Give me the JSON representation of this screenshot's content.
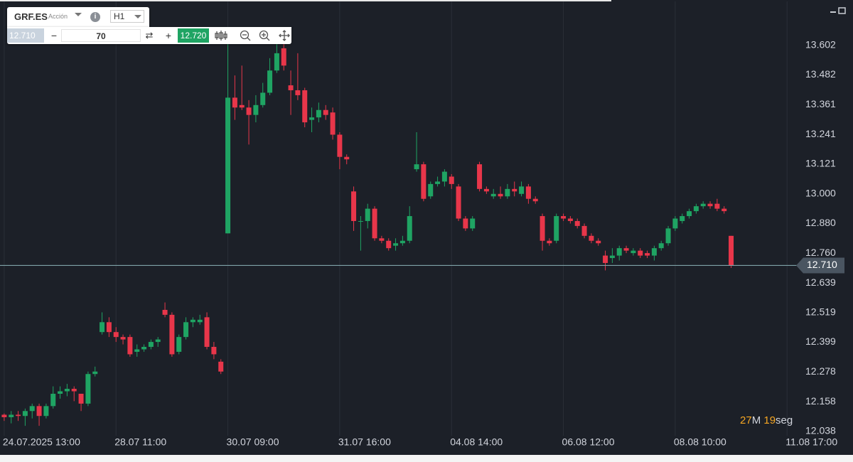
{
  "toolbar": {
    "symbol": "GRF.ES",
    "instrument_type": "Acción",
    "timeframe": "H1",
    "bid": "12.710",
    "quantity": "70",
    "ask": "12.720"
  },
  "chart_data": {
    "type": "candlestick",
    "up_color": "#1fa463",
    "down_color": "#e8364a",
    "grid": true,
    "x": [
      0,
      1,
      2,
      3,
      4,
      5,
      6,
      7,
      8,
      9,
      10,
      11,
      12,
      13,
      14,
      15,
      16,
      17,
      18,
      19,
      20,
      21,
      22,
      23,
      24,
      25,
      26,
      27,
      28,
      29,
      30,
      31,
      32,
      33,
      34,
      35,
      36,
      37,
      38,
      39,
      40,
      41,
      42,
      43,
      44,
      45,
      46,
      47,
      48,
      49,
      50,
      51,
      52,
      53,
      54,
      55,
      56,
      57,
      58,
      59,
      60,
      61,
      62,
      63,
      64,
      65,
      66,
      67,
      68,
      69,
      70,
      71,
      72,
      73,
      74,
      75,
      76,
      77,
      78,
      79,
      80,
      81,
      82,
      83,
      84,
      85,
      86,
      87,
      88,
      89,
      90,
      91,
      92,
      93,
      94,
      95,
      96,
      97,
      98,
      99,
      100,
      101,
      102,
      103,
      104
    ],
    "open": [
      12.105,
      12.095,
      12.105,
      12.1,
      12.12,
      12.14,
      12.1,
      12.14,
      12.19,
      12.2,
      12.21,
      12.19,
      12.15,
      12.27,
      12.44,
      12.48,
      12.44,
      12.42,
      12.42,
      12.36,
      12.37,
      12.38,
      12.4,
      12.53,
      12.51,
      12.36,
      12.42,
      12.48,
      12.48,
      12.5,
      12.38,
      12.32,
      12.84,
      13.39,
      13.36,
      13.35,
      13.32,
      13.36,
      13.41,
      13.5,
      13.59,
      13.44,
      13.42,
      13.42,
      13.3,
      13.31,
      13.34,
      13.33,
      13.24,
      13.15,
      13.01,
      12.89,
      12.89,
      12.94,
      12.82,
      12.81,
      12.79,
      12.8,
      12.81,
      13.1,
      13.12,
      12.99,
      13.04,
      13.05,
      13.07,
      13.03,
      12.9,
      12.86,
      13.12,
      13.02,
      12.99,
      13.0,
      12.99,
      13.02,
      13.0,
      13.03,
      12.98,
      12.91,
      12.81,
      12.81,
      12.91,
      12.9,
      12.89,
      12.87,
      12.83,
      12.81,
      12.75,
      12.74,
      12.75,
      12.78,
      12.76,
      12.77,
      12.76,
      12.75,
      12.78,
      12.8,
      12.86,
      12.89,
      12.91,
      12.93,
      12.95,
      12.96,
      12.96,
      12.94,
      12.83
    ],
    "high": [
      12.11,
      12.12,
      12.12,
      12.13,
      12.15,
      12.15,
      12.15,
      12.22,
      12.22,
      12.23,
      12.22,
      12.19,
      12.28,
      12.3,
      12.52,
      12.5,
      12.46,
      12.43,
      12.43,
      12.39,
      12.39,
      12.41,
      12.42,
      12.56,
      12.52,
      12.43,
      12.5,
      12.5,
      12.51,
      12.52,
      12.4,
      12.33,
      13.62,
      13.48,
      13.52,
      13.38,
      13.4,
      13.45,
      13.55,
      13.62,
      13.64,
      13.5,
      13.57,
      13.43,
      13.35,
      13.37,
      13.36,
      13.35,
      13.25,
      13.16,
      13.03,
      12.91,
      12.96,
      12.95,
      12.83,
      12.82,
      12.82,
      12.83,
      12.95,
      13.25,
      13.13,
      13.05,
      13.07,
      13.1,
      13.08,
      13.04,
      12.91,
      12.91,
      13.13,
      13.03,
      13.02,
      13.03,
      13.04,
      13.05,
      13.05,
      13.04,
      12.99,
      12.92,
      12.82,
      12.92,
      12.92,
      12.91,
      12.9,
      12.88,
      12.84,
      12.82,
      12.77,
      12.78,
      12.79,
      12.79,
      12.78,
      12.78,
      12.77,
      12.79,
      12.81,
      12.87,
      12.91,
      12.92,
      12.94,
      12.96,
      12.97,
      12.97,
      12.98,
      12.95,
      12.83
    ],
    "low": [
      12.08,
      12.07,
      12.08,
      12.06,
      12.09,
      12.06,
      12.09,
      12.13,
      12.17,
      12.18,
      12.16,
      12.12,
      12.14,
      12.26,
      12.43,
      12.42,
      12.4,
      12.39,
      12.34,
      12.34,
      12.36,
      12.37,
      12.38,
      12.5,
      12.34,
      12.35,
      12.41,
      12.46,
      12.47,
      12.37,
      12.33,
      12.27,
      12.84,
      13.3,
      13.34,
      13.2,
      13.29,
      13.35,
      13.4,
      13.49,
      13.5,
      13.32,
      13.38,
      13.27,
      13.25,
      13.29,
      13.3,
      13.22,
      13.1,
      13.12,
      12.85,
      12.77,
      12.86,
      12.81,
      12.8,
      12.77,
      12.77,
      12.79,
      12.8,
      13.09,
      12.97,
      12.98,
      13.03,
      13.03,
      13.02,
      12.89,
      12.85,
      12.85,
      13.01,
      13.0,
      12.98,
      12.98,
      12.98,
      12.99,
      12.99,
      12.96,
      12.96,
      12.77,
      12.79,
      12.8,
      12.89,
      12.88,
      12.86,
      12.82,
      12.8,
      12.79,
      12.69,
      12.72,
      12.73,
      12.76,
      12.75,
      12.74,
      12.74,
      12.73,
      12.77,
      12.79,
      12.85,
      12.88,
      12.9,
      12.92,
      12.94,
      12.94,
      12.93,
      12.92,
      12.7
    ],
    "close": [
      12.095,
      12.105,
      12.1,
      12.12,
      12.14,
      12.1,
      12.14,
      12.19,
      12.2,
      12.21,
      12.2,
      12.15,
      12.27,
      12.28,
      12.48,
      12.44,
      12.42,
      12.41,
      12.35,
      12.37,
      12.38,
      12.4,
      12.41,
      12.51,
      12.35,
      12.42,
      12.48,
      12.49,
      12.49,
      12.38,
      12.35,
      12.28,
      13.39,
      13.35,
      13.35,
      13.32,
      13.36,
      13.41,
      13.5,
      13.57,
      13.52,
      13.42,
      13.4,
      13.29,
      13.31,
      13.34,
      13.32,
      13.24,
      13.15,
      13.14,
      12.89,
      12.89,
      12.94,
      12.82,
      12.81,
      12.78,
      12.8,
      12.81,
      12.91,
      13.12,
      12.98,
      13.04,
      13.05,
      13.09,
      13.04,
      12.9,
      12.86,
      12.9,
      13.02,
      13.01,
      13.0,
      12.99,
      13.02,
      13.01,
      13.03,
      12.98,
      12.97,
      12.81,
      12.8,
      12.91,
      12.9,
      12.89,
      12.87,
      12.83,
      12.81,
      12.8,
      12.72,
      12.75,
      12.78,
      12.77,
      12.77,
      12.75,
      12.75,
      12.78,
      12.8,
      12.86,
      12.9,
      12.91,
      12.93,
      12.95,
      12.96,
      12.95,
      12.94,
      12.93,
      12.71
    ],
    "xlim": [
      -0.6,
      113.3
    ],
    "xticks": [
      {
        "value": 0,
        "label": "24.07.2025 13:00"
      },
      {
        "value": 16,
        "label": "28.07 11:00"
      },
      {
        "value": 32,
        "label": "30.07 09:00"
      },
      {
        "value": 48,
        "label": "31.07 16:00"
      },
      {
        "value": 64,
        "label": "04.08 14:00"
      },
      {
        "value": 80,
        "label": "06.08 12:00"
      },
      {
        "value": 96,
        "label": "08.08 10:00"
      },
      {
        "value": 112,
        "label": "11.08 17:00"
      }
    ],
    "ylim": [
      12.02,
      13.78
    ],
    "yticks": [
      13.602,
      13.482,
      13.361,
      13.241,
      13.121,
      {
        "value": 13.0,
        "label": "13.000"
      },
      {
        "value": 12.88,
        "label": "12.880"
      },
      {
        "value": 12.76,
        "label": "12.760"
      },
      12.639,
      12.519,
      12.399,
      12.278,
      12.158,
      12.038
    ],
    "last_price": {
      "value": 12.71,
      "label": "12.710"
    },
    "countdown": {
      "minutes": "27",
      "minutes_unit": "M",
      "seconds": "19",
      "seconds_unit": "seg"
    }
  }
}
